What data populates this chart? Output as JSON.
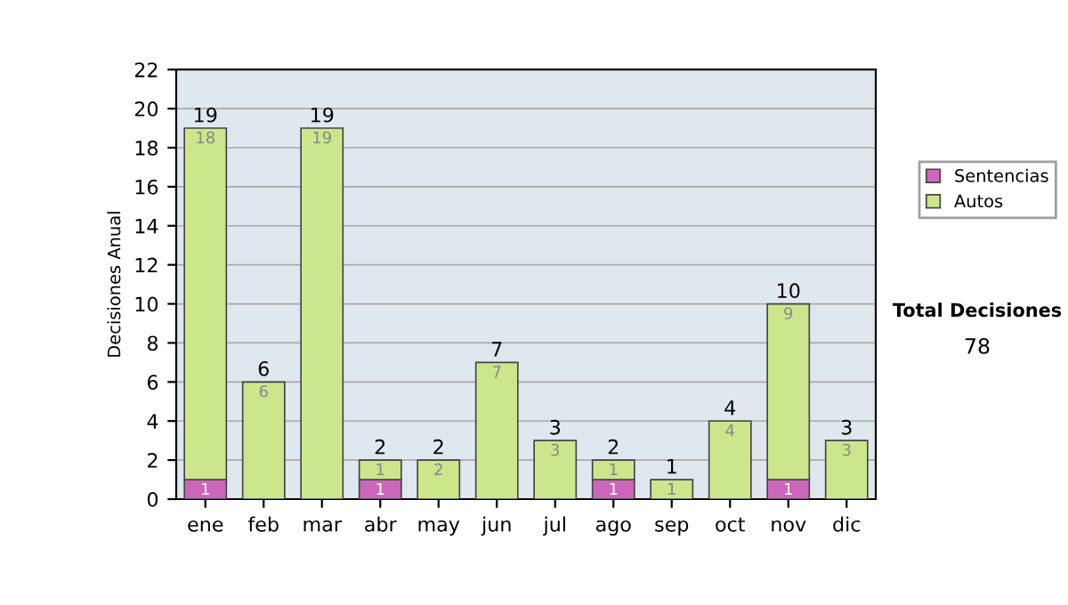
{
  "chart_data": {
    "type": "bar",
    "stacked": true,
    "ylabel": "Decisiones Anual",
    "categories": [
      "ene",
      "feb",
      "mar",
      "abr",
      "may",
      "jun",
      "jul",
      "ago",
      "sep",
      "oct",
      "nov",
      "dic"
    ],
    "series": [
      {
        "name": "Sentencias",
        "color": "#cc66bb",
        "values": [
          1,
          0,
          0,
          1,
          0,
          0,
          0,
          1,
          0,
          0,
          1,
          0
        ],
        "value_labels": [
          "1",
          null,
          null,
          "1",
          null,
          null,
          null,
          "1",
          null,
          null,
          "1",
          null
        ]
      },
      {
        "name": "Autos",
        "color": "#cce68c",
        "values": [
          18,
          6,
          19,
          1,
          2,
          7,
          3,
          1,
          1,
          4,
          9,
          3
        ],
        "value_labels": [
          "18",
          "6",
          "19",
          "1",
          "2",
          "7",
          "3",
          "1",
          "1",
          "4",
          "9",
          "3"
        ]
      }
    ],
    "totals": [
      "19",
      "6",
      "19",
      "2",
      "2",
      "7",
      "3",
      "2",
      "1",
      "4",
      "10",
      "3"
    ],
    "ylim": [
      0,
      22
    ],
    "yticks": [
      0,
      2,
      4,
      6,
      8,
      10,
      12,
      14,
      16,
      18,
      20,
      22
    ],
    "grid": "y",
    "legend": "right",
    "annotations": [
      "Total Decisiones",
      "78"
    ]
  }
}
